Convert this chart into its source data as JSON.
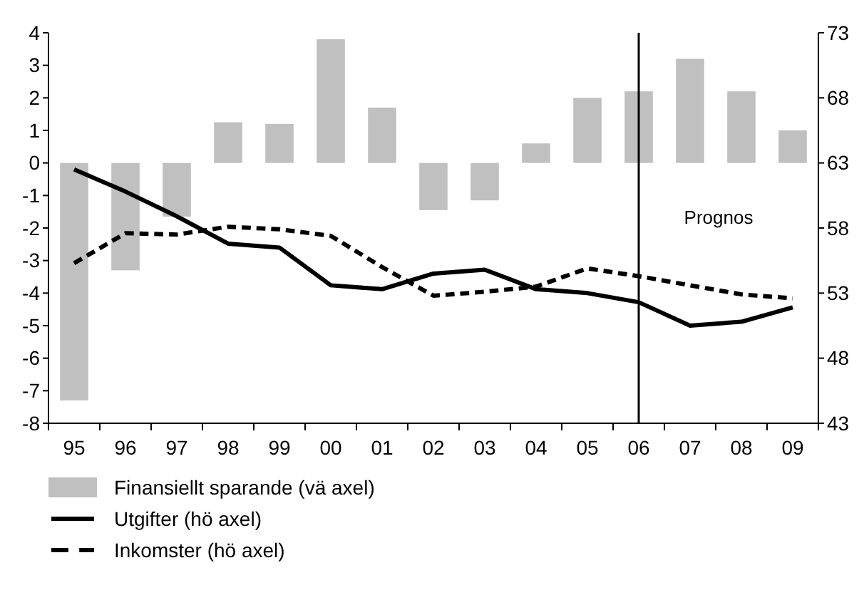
{
  "chart_data": {
    "type": "bar",
    "categories": [
      "95",
      "96",
      "97",
      "98",
      "99",
      "00",
      "01",
      "02",
      "03",
      "04",
      "05",
      "06",
      "07",
      "08",
      "09"
    ],
    "series": [
      {
        "name": "Finansiellt sparande (vä axel)",
        "color": "#c0c0c0",
        "values": [
          -7.3,
          -3.3,
          -1.65,
          1.25,
          1.2,
          3.8,
          1.7,
          -1.45,
          -1.15,
          0.6,
          2.0,
          2.2,
          3.2,
          2.2,
          1.0
        ]
      },
      {
        "name": "Utgifter (hö axel)",
        "type": "line",
        "axis": "y2",
        "line_style": "solid",
        "color": "#000000",
        "values": [
          62.5,
          60.8,
          58.9,
          56.8,
          56.5,
          53.6,
          53.3,
          54.5,
          54.8,
          53.3,
          53.0,
          52.3,
          50.5,
          50.8,
          51.9
        ]
      },
      {
        "name": "Inkomster (hö axel)",
        "type": "line",
        "axis": "y2",
        "line_style": "dashed",
        "color": "#000000",
        "values": [
          55.3,
          57.6,
          57.5,
          58.1,
          57.9,
          57.4,
          55.0,
          52.8,
          53.1,
          53.5,
          54.9,
          54.3,
          53.6,
          52.9,
          52.6
        ]
      }
    ],
    "ylim": [
      -8,
      4
    ],
    "yticks": [
      -8,
      -7,
      -6,
      -5,
      -4,
      -3,
      -2,
      -1,
      0,
      1,
      2,
      3,
      4
    ],
    "y2lim": [
      43,
      73
    ],
    "y2ticks": [
      43,
      48,
      53,
      58,
      63,
      68,
      73
    ],
    "ref_lines": [
      {
        "axis": "x",
        "value": "06",
        "label": "Prognos",
        "color": "#000000"
      }
    ],
    "grid": false,
    "legend": "bottom left"
  }
}
